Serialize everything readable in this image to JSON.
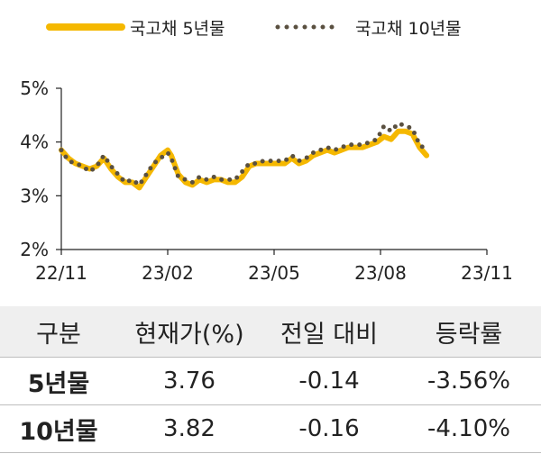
{
  "chart_data": {
    "type": "line",
    "title": "",
    "xlabel": "",
    "ylabel": "",
    "ylim": [
      2,
      5
    ],
    "y_ticks": [
      "2%",
      "3%",
      "4%",
      "5%"
    ],
    "x_ticks": [
      {
        "x": 0,
        "label": "22/11"
      },
      {
        "x": 3,
        "label": "23/02"
      },
      {
        "x": 6,
        "label": "23/05"
      },
      {
        "x": 9,
        "label": "23/08"
      },
      {
        "x": 12,
        "label": "23/11"
      }
    ],
    "legend_position": "top",
    "grid": false,
    "series": [
      {
        "name": "국고채 5년물",
        "style": "solid",
        "color": "#F5B800",
        "points": [
          [
            0,
            3.85
          ],
          [
            0.2,
            3.7
          ],
          [
            0.4,
            3.6
          ],
          [
            0.6,
            3.55
          ],
          [
            0.8,
            3.5
          ],
          [
            1.0,
            3.55
          ],
          [
            1.2,
            3.7
          ],
          [
            1.4,
            3.5
          ],
          [
            1.6,
            3.35
          ],
          [
            1.8,
            3.25
          ],
          [
            2.0,
            3.25
          ],
          [
            2.2,
            3.15
          ],
          [
            2.4,
            3.35
          ],
          [
            2.6,
            3.55
          ],
          [
            2.8,
            3.75
          ],
          [
            3.0,
            3.85
          ],
          [
            3.1,
            3.75
          ],
          [
            3.3,
            3.4
          ],
          [
            3.5,
            3.25
          ],
          [
            3.7,
            3.2
          ],
          [
            3.9,
            3.3
          ],
          [
            4.1,
            3.25
          ],
          [
            4.3,
            3.3
          ],
          [
            4.5,
            3.3
          ],
          [
            4.7,
            3.25
          ],
          [
            4.9,
            3.25
          ],
          [
            5.1,
            3.35
          ],
          [
            5.3,
            3.55
          ],
          [
            5.5,
            3.6
          ],
          [
            5.7,
            3.6
          ],
          [
            5.9,
            3.6
          ],
          [
            6.1,
            3.6
          ],
          [
            6.3,
            3.6
          ],
          [
            6.5,
            3.7
          ],
          [
            6.7,
            3.6
          ],
          [
            6.9,
            3.65
          ],
          [
            7.1,
            3.75
          ],
          [
            7.3,
            3.8
          ],
          [
            7.5,
            3.85
          ],
          [
            7.7,
            3.8
          ],
          [
            7.9,
            3.85
          ],
          [
            8.1,
            3.9
          ],
          [
            8.3,
            3.9
          ],
          [
            8.5,
            3.9
          ],
          [
            8.7,
            3.95
          ],
          [
            8.9,
            4.0
          ],
          [
            9.1,
            4.1
          ],
          [
            9.3,
            4.05
          ],
          [
            9.5,
            4.2
          ],
          [
            9.7,
            4.2
          ],
          [
            9.9,
            4.15
          ],
          [
            10.1,
            3.9
          ],
          [
            10.3,
            3.75
          ]
        ]
      },
      {
        "name": "국고채 10년물",
        "style": "dotted",
        "color": "#5A5040",
        "points": [
          [
            0,
            3.85
          ],
          [
            0.2,
            3.65
          ],
          [
            0.4,
            3.6
          ],
          [
            0.6,
            3.55
          ],
          [
            0.8,
            3.45
          ],
          [
            1.0,
            3.55
          ],
          [
            1.2,
            3.75
          ],
          [
            1.4,
            3.55
          ],
          [
            1.6,
            3.4
          ],
          [
            1.8,
            3.25
          ],
          [
            2.0,
            3.3
          ],
          [
            2.2,
            3.2
          ],
          [
            2.4,
            3.4
          ],
          [
            2.6,
            3.6
          ],
          [
            2.8,
            3.7
          ],
          [
            3.0,
            3.8
          ],
          [
            3.1,
            3.7
          ],
          [
            3.3,
            3.35
          ],
          [
            3.5,
            3.3
          ],
          [
            3.7,
            3.25
          ],
          [
            3.9,
            3.35
          ],
          [
            4.1,
            3.3
          ],
          [
            4.3,
            3.35
          ],
          [
            4.5,
            3.3
          ],
          [
            4.7,
            3.3
          ],
          [
            4.9,
            3.3
          ],
          [
            5.1,
            3.45
          ],
          [
            5.3,
            3.6
          ],
          [
            5.5,
            3.6
          ],
          [
            5.7,
            3.65
          ],
          [
            5.9,
            3.65
          ],
          [
            6.1,
            3.65
          ],
          [
            6.3,
            3.65
          ],
          [
            6.5,
            3.75
          ],
          [
            6.7,
            3.65
          ],
          [
            6.9,
            3.7
          ],
          [
            7.1,
            3.8
          ],
          [
            7.3,
            3.85
          ],
          [
            7.5,
            3.9
          ],
          [
            7.7,
            3.85
          ],
          [
            7.9,
            3.9
          ],
          [
            8.1,
            3.95
          ],
          [
            8.3,
            3.95
          ],
          [
            8.5,
            3.95
          ],
          [
            8.7,
            4.0
          ],
          [
            8.9,
            4.05
          ],
          [
            9.1,
            4.3
          ],
          [
            9.3,
            4.2
          ],
          [
            9.5,
            4.35
          ],
          [
            9.7,
            4.3
          ],
          [
            9.9,
            4.25
          ],
          [
            10.1,
            3.95
          ],
          [
            10.3,
            3.85
          ]
        ]
      }
    ]
  },
  "table": {
    "headers": [
      "구분",
      "현재가(%)",
      "전일 대비",
      "등락률"
    ],
    "rows": [
      {
        "label": "5년물",
        "current": "3.76",
        "change": "-0.14",
        "rate": "-3.56%"
      },
      {
        "label": "10년물",
        "current": "3.82",
        "change": "-0.16",
        "rate": "-4.10%"
      }
    ]
  }
}
